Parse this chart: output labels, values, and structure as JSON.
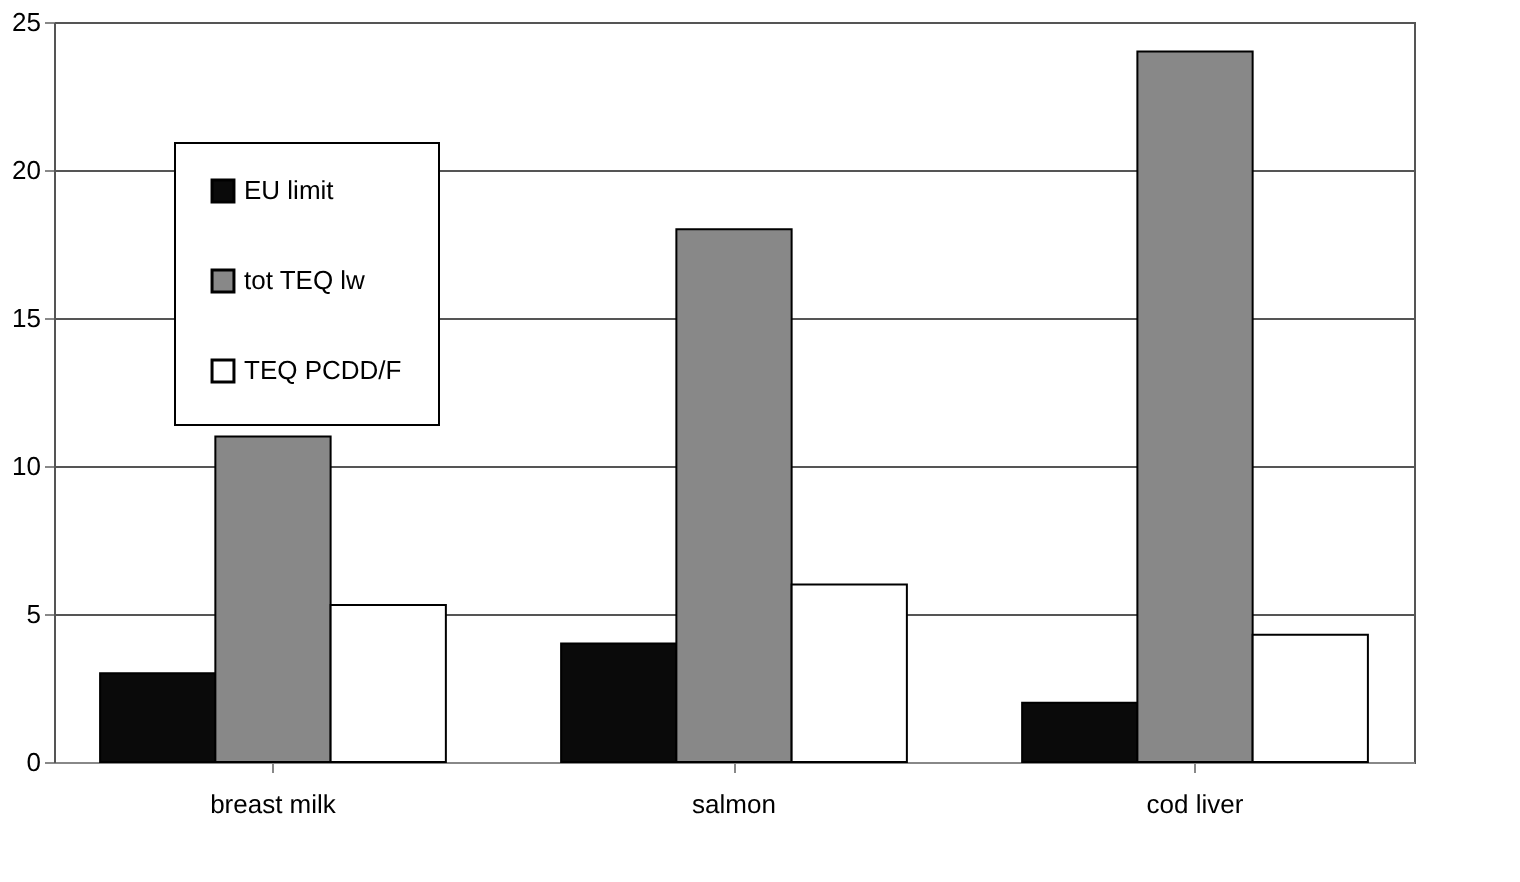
{
  "chart_data": {
    "type": "bar",
    "categories": [
      "breast milk",
      "salmon",
      "cod liver"
    ],
    "series": [
      {
        "name": "EU limit",
        "color": "#0a0a0a",
        "values": [
          3.0,
          4.0,
          2.0
        ]
      },
      {
        "name": "tot TEQ lw",
        "color": "#888888",
        "values": [
          11.0,
          18.0,
          24.0
        ]
      },
      {
        "name": "TEQ PCDD/F",
        "color": "#ffffff",
        "values": [
          5.3,
          6.0,
          4.3
        ]
      }
    ],
    "ylim": [
      0,
      25
    ],
    "yticks": [
      0,
      5,
      10,
      15,
      20,
      25
    ],
    "grid": "y",
    "legend": "top left"
  }
}
